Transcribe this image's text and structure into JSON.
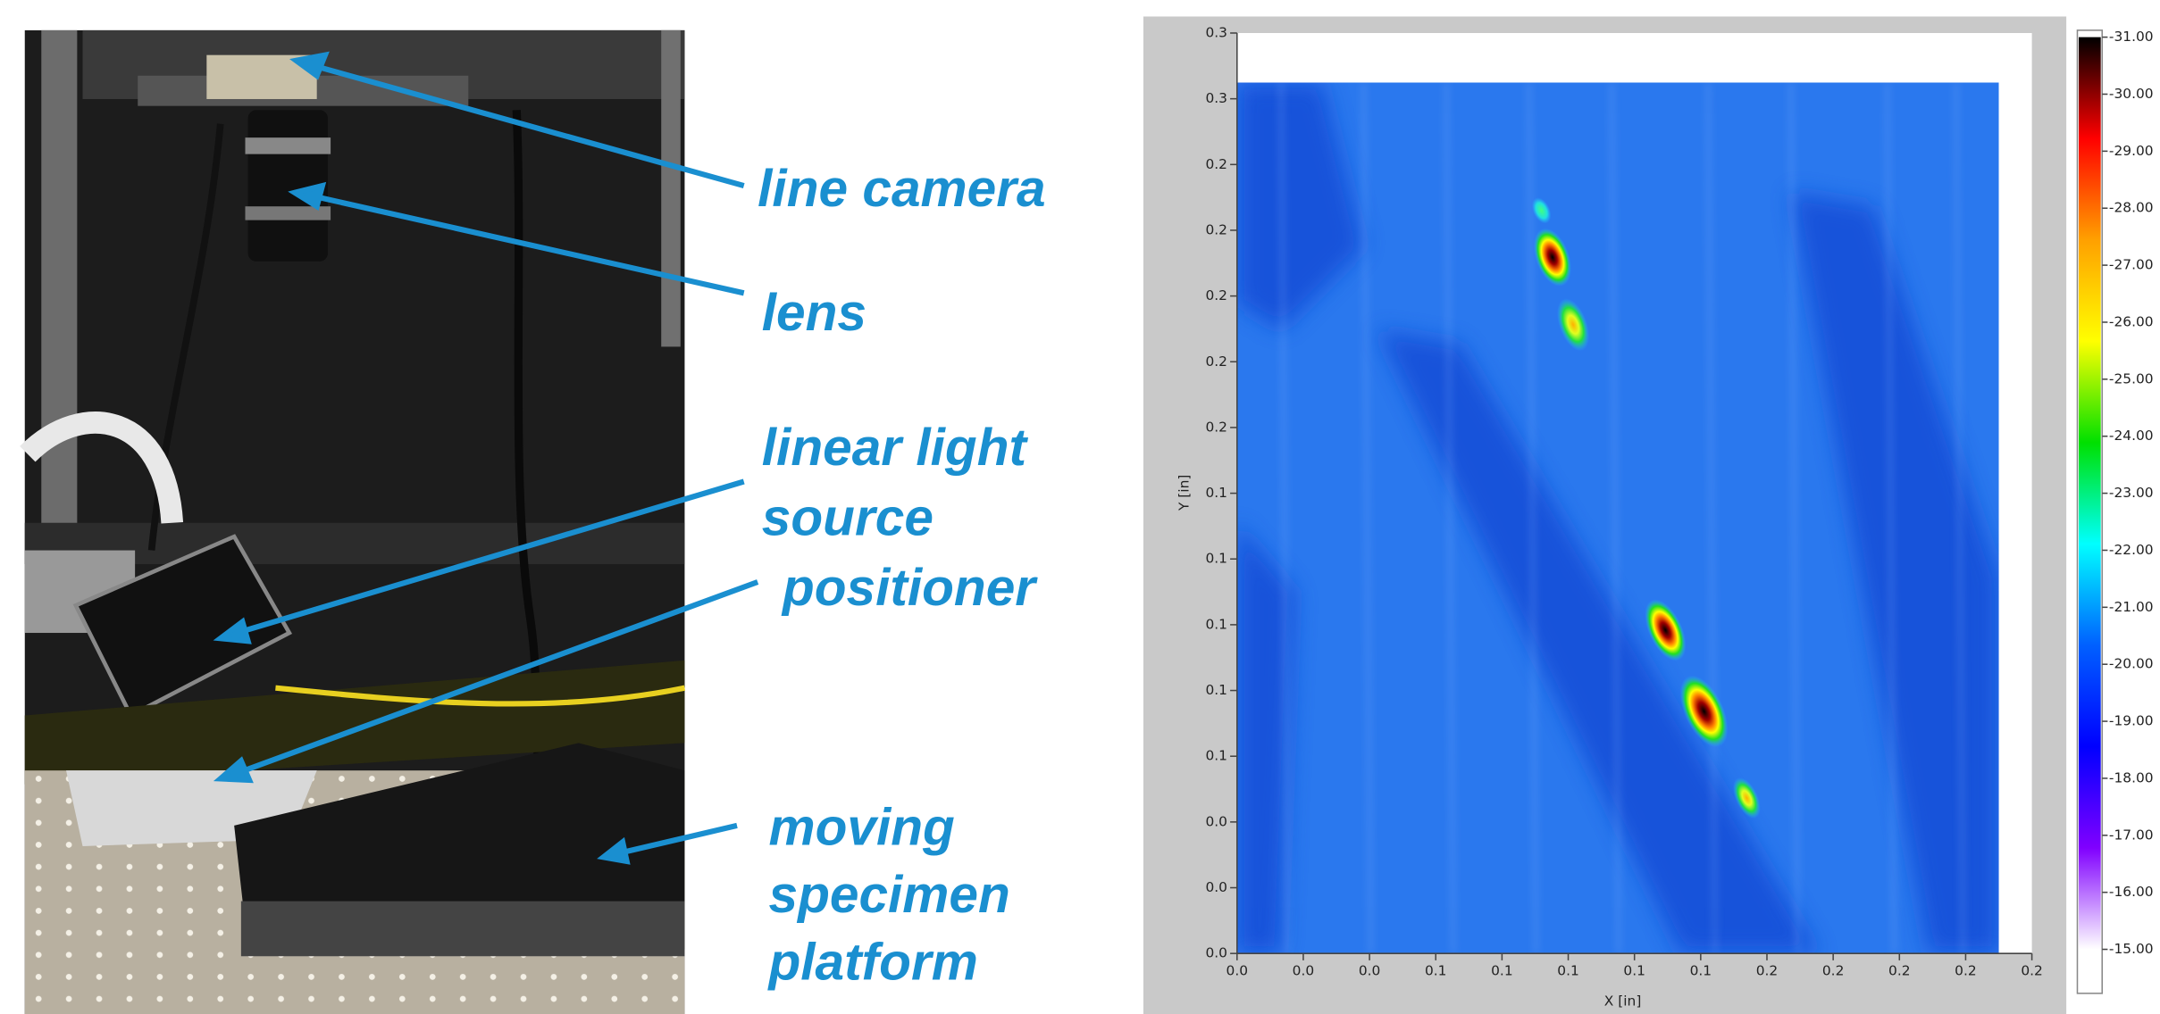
{
  "photo_labels": [
    "line camera",
    "lens",
    "linear light",
    "source",
    "positioner",
    "moving",
    "specimen",
    "platform"
  ],
  "chart_data": {
    "type": "heatmap",
    "xlabel": "X [in]",
    "ylabel": "Y [in]",
    "xlim": [
      0,
      0.24
    ],
    "ylim": [
      0,
      0.28
    ],
    "xticks": [
      {
        "value": 0,
        "label": "0.0"
      },
      {
        "value": 0.02,
        "label": "0.0"
      },
      {
        "value": 0.04,
        "label": "0.0"
      },
      {
        "value": 0.06,
        "label": "0.1"
      },
      {
        "value": 0.08,
        "label": "0.1"
      },
      {
        "value": 0.1,
        "label": "0.1"
      },
      {
        "value": 0.12,
        "label": "0.1"
      },
      {
        "value": 0.14,
        "label": "0.1"
      },
      {
        "value": 0.16,
        "label": "0.2"
      },
      {
        "value": 0.18,
        "label": "0.2"
      },
      {
        "value": 0.2,
        "label": "0.2"
      },
      {
        "value": 0.22,
        "label": "0.2"
      },
      {
        "value": 0.24,
        "label": "0.2"
      }
    ],
    "yticks": [
      {
        "value": 0,
        "label": "0.0"
      },
      {
        "value": 0.02,
        "label": "0.0"
      },
      {
        "value": 0.04,
        "label": "0.0"
      },
      {
        "value": 0.06,
        "label": "0.1"
      },
      {
        "value": 0.08,
        "label": "0.1"
      },
      {
        "value": 0.1,
        "label": "0.1"
      },
      {
        "value": 0.12,
        "label": "0.1"
      },
      {
        "value": 0.14,
        "label": "0.1"
      },
      {
        "value": 0.16,
        "label": "0.2"
      },
      {
        "value": 0.18,
        "label": "0.2"
      },
      {
        "value": 0.2,
        "label": "0.2"
      },
      {
        "value": 0.22,
        "label": "0.2"
      },
      {
        "value": 0.24,
        "label": "0.2"
      },
      {
        "value": 0.26,
        "label": "0.3"
      },
      {
        "value": 0.28,
        "label": "0.3"
      }
    ],
    "zlim": [
      -31,
      -15
    ],
    "zticks": [
      {
        "value": -31,
        "label": "-31.00"
      },
      {
        "value": -30,
        "label": "-30.00"
      },
      {
        "value": -29,
        "label": "-29.00"
      },
      {
        "value": -28,
        "label": "-28.00"
      },
      {
        "value": -27,
        "label": "-27.00"
      },
      {
        "value": -26,
        "label": "-26.00"
      },
      {
        "value": -25,
        "label": "-25.00"
      },
      {
        "value": -24,
        "label": "-24.00"
      },
      {
        "value": -23,
        "label": "-23.00"
      },
      {
        "value": -22,
        "label": "-22.00"
      },
      {
        "value": -21,
        "label": "-21.00"
      },
      {
        "value": -20,
        "label": "-20.00"
      },
      {
        "value": -19,
        "label": "-19.00"
      },
      {
        "value": -18,
        "label": "-18.00"
      },
      {
        "value": -17,
        "label": "-17.00"
      },
      {
        "value": -16,
        "label": "-16.00"
      },
      {
        "value": -15,
        "label": "-15.00"
      }
    ],
    "colormap": [
      "#000000",
      "#ff0000",
      "#ffa000",
      "#ffff00",
      "#00e000",
      "#00ffff",
      "#0060ff",
      "#0000ff",
      "#8000ff",
      "#ffffff"
    ]
  }
}
